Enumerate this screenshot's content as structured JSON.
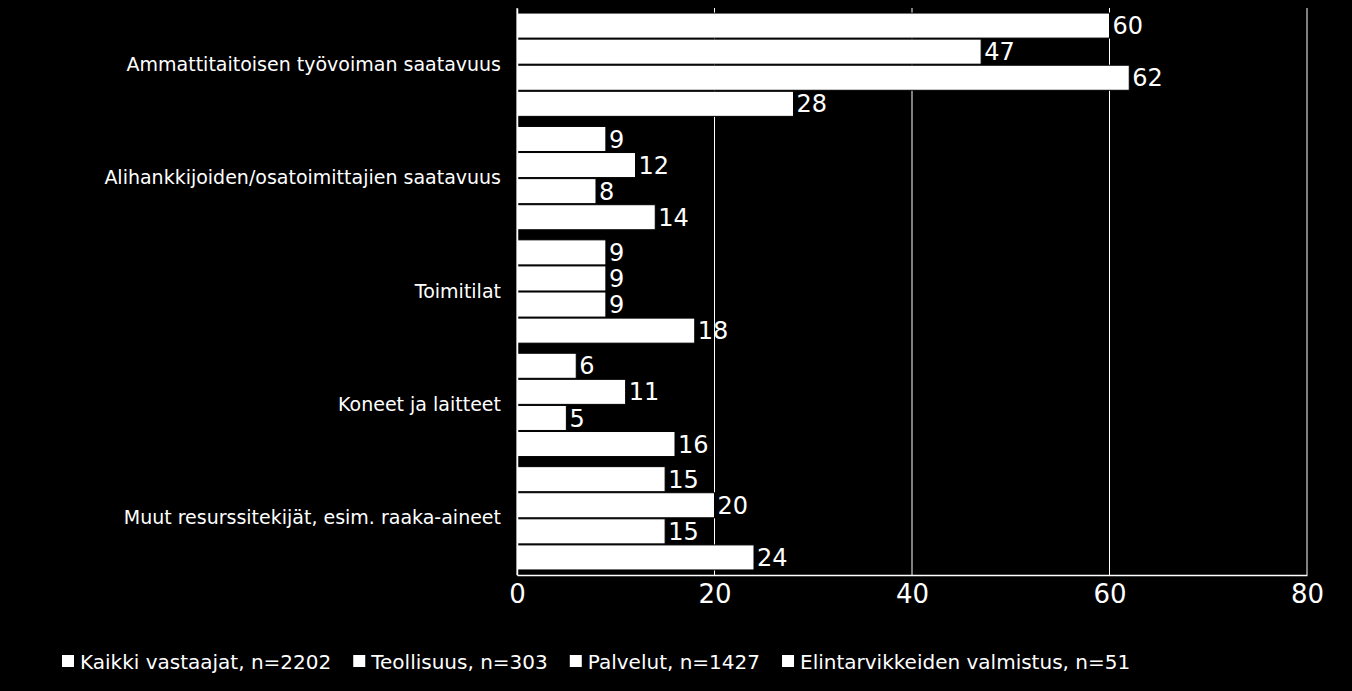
{
  "chart_data": {
    "type": "bar",
    "orientation": "horizontal",
    "categories": [
      "Ammattitaitoisen työvoiman saatavuus",
      "Alihankkijoiden/osatoimittajien saatavuus",
      "Toimitilat",
      "Koneet ja laitteet",
      "Muut resurssitekijät, esim. raaka-aineet"
    ],
    "series": [
      {
        "name": "Kaikki vastaajat, n=2202",
        "color": "#ffffff",
        "values": [
          60,
          9,
          9,
          6,
          15
        ]
      },
      {
        "name": "Teollisuus, n=303",
        "color": "#ffffff",
        "values": [
          47,
          12,
          9,
          11,
          20
        ]
      },
      {
        "name": "Palvelut, n=1427",
        "color": "#ffffff",
        "values": [
          62,
          8,
          9,
          5,
          15
        ]
      },
      {
        "name": "Elintarvikkeiden valmistus, n=51",
        "color": "#ffffff",
        "values": [
          28,
          14,
          18,
          16,
          24
        ]
      }
    ],
    "xlim": [
      0,
      80
    ],
    "xticks": [
      0,
      20,
      40,
      60,
      80
    ],
    "grid": true,
    "data_labels": true,
    "legend": "bottom"
  }
}
